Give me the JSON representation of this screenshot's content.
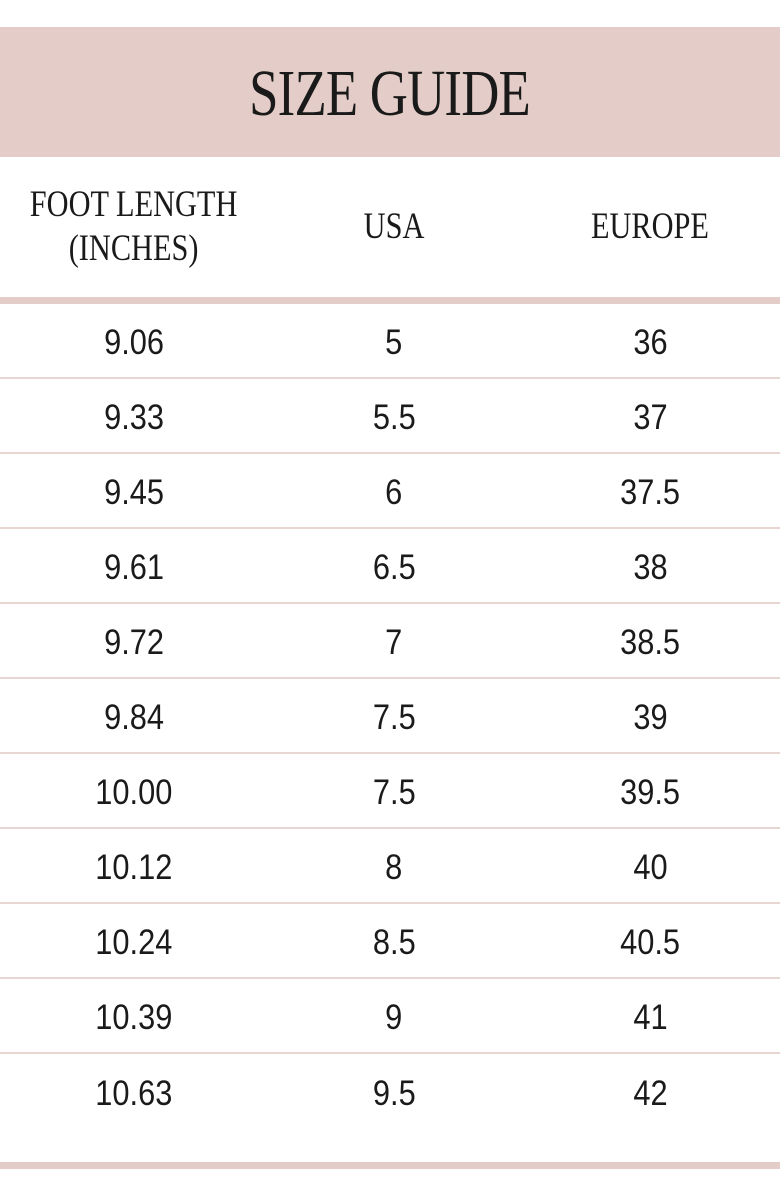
{
  "title": "SIZE GUIDE",
  "headers": {
    "foot_length": "FOOT LENGTH\n(INCHES)",
    "usa": "USA",
    "europe": "EUROPE"
  },
  "colors": {
    "accent": "#e4cdc8",
    "text": "#1a1a1a"
  },
  "rows": [
    {
      "foot_length": "9.06",
      "usa": "5",
      "europe": "36"
    },
    {
      "foot_length": "9.33",
      "usa": "5.5",
      "europe": "37"
    },
    {
      "foot_length": "9.45",
      "usa": "6",
      "europe": "37.5"
    },
    {
      "foot_length": "9.61",
      "usa": "6.5",
      "europe": "38"
    },
    {
      "foot_length": "9.72",
      "usa": "7",
      "europe": "38.5"
    },
    {
      "foot_length": "9.84",
      "usa": "7.5",
      "europe": "39"
    },
    {
      "foot_length": "10.00",
      "usa": "7.5",
      "europe": "39.5"
    },
    {
      "foot_length": "10.12",
      "usa": "8",
      "europe": "40"
    },
    {
      "foot_length": "10.24",
      "usa": "8.5",
      "europe": "40.5"
    },
    {
      "foot_length": "10.39",
      "usa": "9",
      "europe": "41"
    },
    {
      "foot_length": "10.63",
      "usa": "9.5",
      "europe": "42"
    }
  ]
}
